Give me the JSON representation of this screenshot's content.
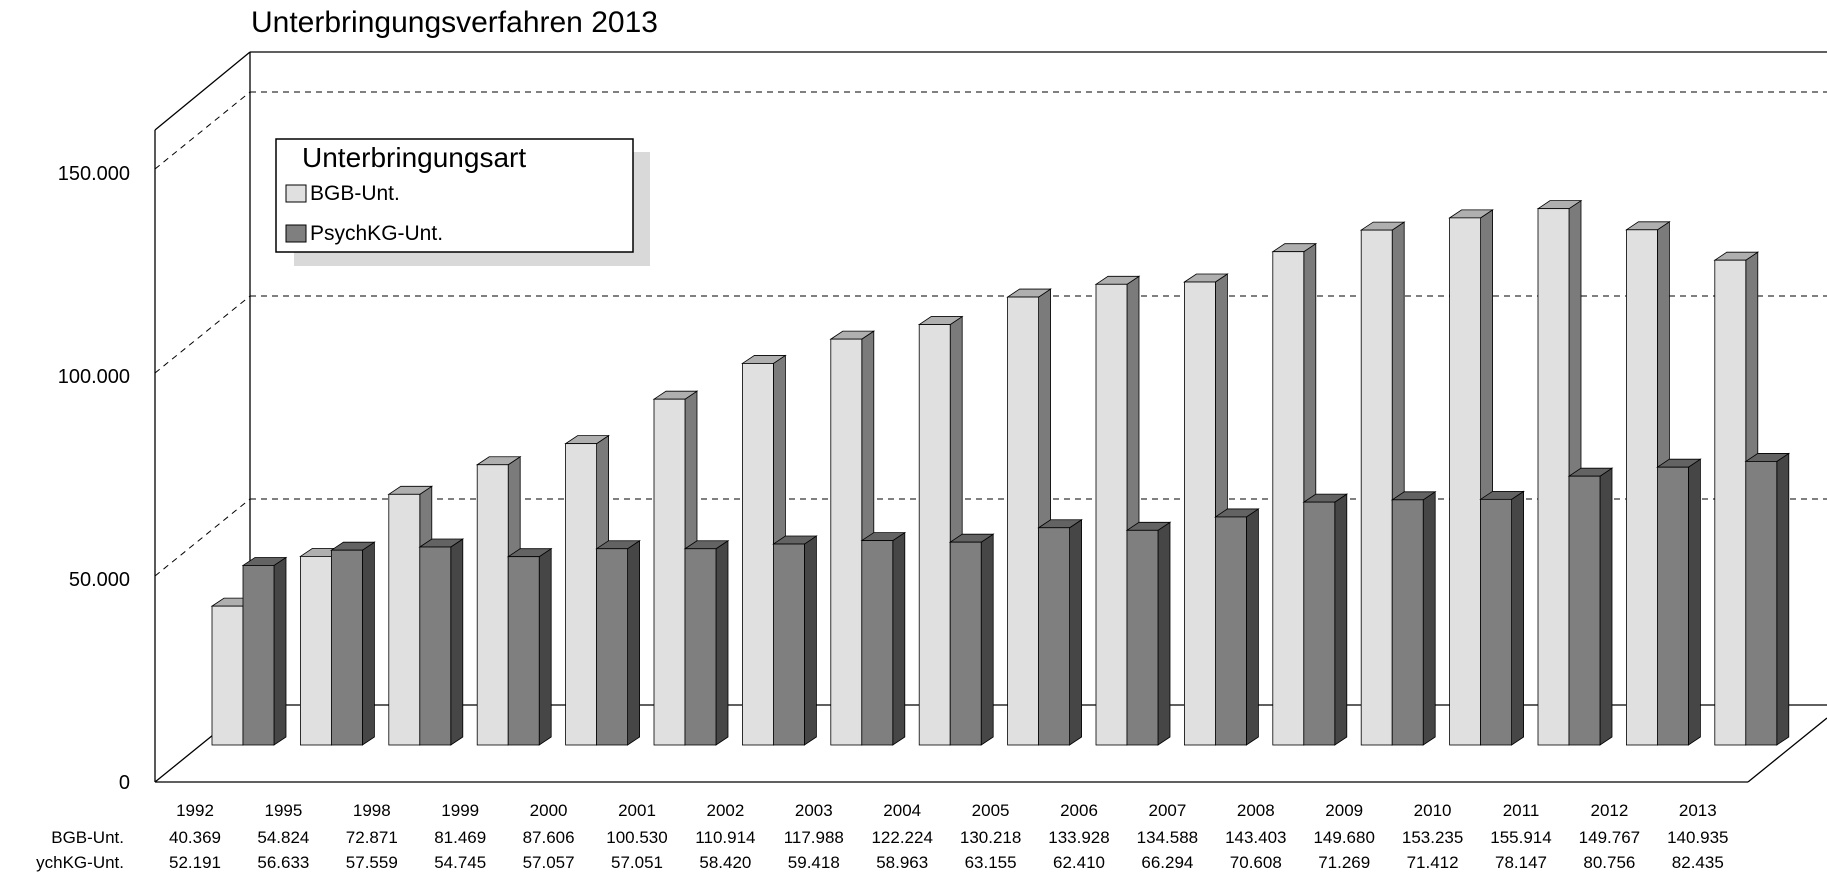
{
  "chart_data": {
    "type": "bar",
    "title": "Unterbringungsverfahren 2013",
    "categories": [
      "1992",
      "1995",
      "1998",
      "1999",
      "2000",
      "2001",
      "2002",
      "2003",
      "2004",
      "2005",
      "2006",
      "2007",
      "2008",
      "2009",
      "2010",
      "2011",
      "2012",
      "2013"
    ],
    "series": [
      {
        "name": "BGB-Unt.",
        "table_label": "BGB-Unt.",
        "color": "#e0e0e0",
        "values": [
          40369,
          54824,
          72871,
          81469,
          87606,
          100530,
          110914,
          117988,
          122224,
          130218,
          133928,
          134588,
          143403,
          149680,
          153235,
          155914,
          149767,
          140935
        ],
        "value_labels": [
          "40.369",
          "54.824",
          "72.871",
          "81.469",
          "87.606",
          "100.530",
          "110.914",
          "117.988",
          "122.224",
          "130.218",
          "133.928",
          "134.588",
          "143.403",
          "149.680",
          "153.235",
          "155.914",
          "149.767",
          "140.935"
        ]
      },
      {
        "name": "PsychKG-Unt.",
        "table_label": "ychKG-Unt.",
        "color": "#7f7f7f",
        "values": [
          52191,
          56633,
          57559,
          54745,
          57057,
          57051,
          58420,
          59418,
          58963,
          63155,
          62410,
          66294,
          70608,
          71269,
          71412,
          78147,
          80756,
          82435
        ],
        "value_labels": [
          "52.191",
          "56.633",
          "57.559",
          "54.745",
          "57.057",
          "57.051",
          "58.420",
          "59.418",
          "58.963",
          "63.155",
          "62.410",
          "66.294",
          "70.608",
          "71.269",
          "71.412",
          "78.147",
          "80.756",
          "82.435"
        ]
      }
    ],
    "y_ticks": [
      {
        "value": 0,
        "label": "0"
      },
      {
        "value": 50000,
        "label": "50.000"
      },
      {
        "value": 100000,
        "label": "100.000"
      },
      {
        "value": 150000,
        "label": "150.000"
      }
    ],
    "ylim": [
      0,
      160000
    ],
    "legend": {
      "title": "Unterbringungsart",
      "position": "top-left"
    },
    "grid": true,
    "style": "3d-clustered-columns"
  }
}
